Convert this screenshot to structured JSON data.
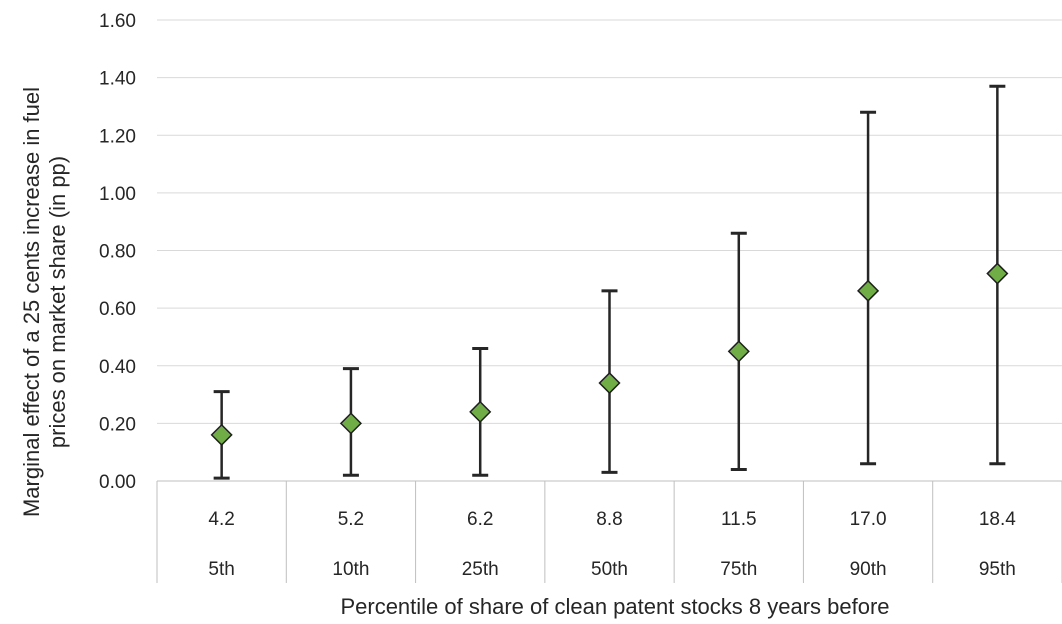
{
  "chart_data": {
    "type": "scatter",
    "error_bars": true,
    "title": "",
    "ylabel_lines": [
      "Marginal effect of a 25 cents increase in fuel",
      "prices on market share (in pp)"
    ],
    "xlabel": "Percentile of share of clean patent stocks 8 years before",
    "ylim": [
      0,
      1.6
    ],
    "yticks": [
      "0.00",
      "0.20",
      "0.40",
      "0.60",
      "0.80",
      "1.00",
      "1.20",
      "1.40",
      "1.60"
    ],
    "grid": true,
    "categories": [
      {
        "value_label": "4.2",
        "percentile": "5th"
      },
      {
        "value_label": "5.2",
        "percentile": "10th"
      },
      {
        "value_label": "6.2",
        "percentile": "25th"
      },
      {
        "value_label": "8.8",
        "percentile": "50th"
      },
      {
        "value_label": "11.5",
        "percentile": "75th"
      },
      {
        "value_label": "17.0",
        "percentile": "90th"
      },
      {
        "value_label": "18.4",
        "percentile": "95th"
      }
    ],
    "points": [
      {
        "y": 0.16,
        "low": 0.01,
        "high": 0.31
      },
      {
        "y": 0.2,
        "low": 0.02,
        "high": 0.39
      },
      {
        "y": 0.24,
        "low": 0.02,
        "high": 0.46
      },
      {
        "y": 0.34,
        "low": 0.03,
        "high": 0.66
      },
      {
        "y": 0.45,
        "low": 0.04,
        "high": 0.86
      },
      {
        "y": 0.66,
        "low": 0.06,
        "high": 1.28
      },
      {
        "y": 0.72,
        "low": 0.06,
        "high": 1.37
      }
    ],
    "colors": {
      "marker_fill": "#70ad47",
      "marker_edge": "#1f1f1f",
      "error_bar": "#262626",
      "grid": "#d9d9d9",
      "axis": "#bfbfbf",
      "text": "#262626"
    }
  }
}
